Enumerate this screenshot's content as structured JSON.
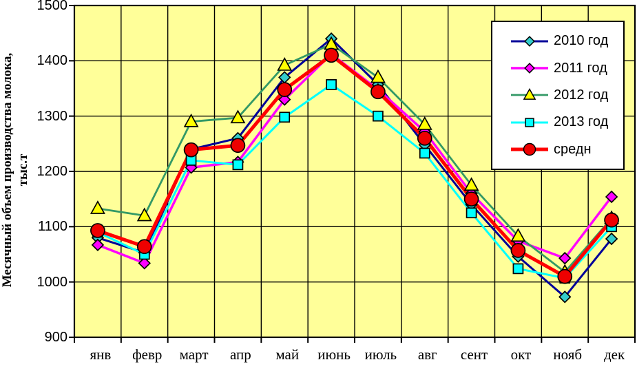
{
  "chart_data": {
    "type": "line",
    "title": "",
    "ylabel_line1": "Месячный объем производства молока,",
    "ylabel_line2": "тыс.т",
    "xlabel": "",
    "categories": [
      "янв",
      "февр",
      "март",
      "апр",
      "май",
      "июнь",
      "июль",
      "авг",
      "сент",
      "окт",
      "нояб",
      "дек"
    ],
    "ylim": [
      900,
      1500
    ],
    "y_ticks": [
      1500,
      1400,
      1300,
      1200,
      1100,
      1000,
      900
    ],
    "grid": true,
    "plot_background": "#FFFF99",
    "legend_position": "top-right-inside",
    "series": [
      {
        "name": "2010 год",
        "line_color": "#000099",
        "line_width": 3,
        "marker": "diamond",
        "marker_fill": "#33CCCC",
        "marker_size": 8,
        "values": [
          1080,
          1053,
          1240,
          1260,
          1370,
          1440,
          1357,
          1248,
          1140,
          1046,
          973,
          1078
        ]
      },
      {
        "name": "2011 год",
        "line_color": "#FF00FF",
        "line_width": 3.5,
        "marker": "diamond",
        "marker_fill": "#FF00FF",
        "marker_size": 8,
        "values": [
          1067,
          1034,
          1207,
          1217,
          1330,
          1412,
          1348,
          1272,
          1160,
          1074,
          1043,
          1154
        ]
      },
      {
        "name": "2012 год",
        "line_color": "#339966",
        "line_width": 2.8,
        "marker": "triangle",
        "marker_fill": "#FFFF00",
        "marker_size": 10,
        "values": [
          1133,
          1120,
          1290,
          1297,
          1392,
          1430,
          1370,
          1285,
          1175,
          1083,
          1018,
          1115
        ]
      },
      {
        "name": "2013 год",
        "line_color": "#00FFFF",
        "line_width": 3,
        "marker": "square",
        "marker_fill": "#00FFFF",
        "marker_size": 7,
        "values": [
          1090,
          1050,
          1220,
          1212,
          1298,
          1357,
          1300,
          1233,
          1125,
          1024,
          1007,
          1100
        ]
      },
      {
        "name": "средн",
        "line_color": "#FF0000",
        "line_width": 5,
        "marker": "circle",
        "marker_fill": "#EE0000",
        "marker_size": 10,
        "values": [
          1093,
          1064,
          1239,
          1247,
          1348,
          1410,
          1344,
          1260,
          1150,
          1057,
          1010,
          1112
        ]
      }
    ]
  }
}
